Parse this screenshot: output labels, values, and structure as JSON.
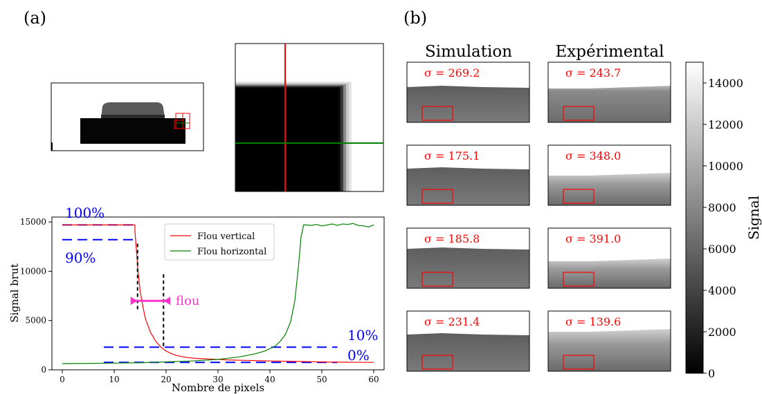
{
  "panel_labels": {
    "a": "(a)",
    "b": "(b)"
  },
  "column_headers": {
    "sim": "Simulation",
    "exp": "Expérimental"
  },
  "legend": {
    "vertical": "Flou vertical",
    "horizontal": "Flou horizontal"
  },
  "annotations": {
    "p100": "100%",
    "p90": "90%",
    "p10": "10%",
    "p0": "0%",
    "flou": "flou"
  },
  "sigma_prefix": "σ = ",
  "sigma_values": {
    "sim": [
      "269.2",
      "175.1",
      "185.8",
      "231.4"
    ],
    "exp": [
      "243.7",
      "348.0",
      "391.0",
      "139.6"
    ]
  },
  "colorbar": {
    "label": "Signal",
    "ticks": [
      "0",
      "2000",
      "4000",
      "6000",
      "8000",
      "10000",
      "12000",
      "14000"
    ],
    "range": [
      0,
      15000
    ]
  },
  "colors": {
    "vertical": "#ff0000",
    "horizontal": "#008000",
    "threshold": "#0000ff",
    "flou": "#ff33cc",
    "roi": "#ff0000"
  },
  "chart_data": {
    "type": "line",
    "xlabel": "Nombre de pixels",
    "ylabel": "Signal brut",
    "xlim": [
      -2,
      62
    ],
    "ylim": [
      0,
      15500
    ],
    "xticks": [
      0,
      10,
      20,
      30,
      40,
      50,
      60
    ],
    "yticks": [
      0,
      5000,
      10000,
      15000
    ],
    "legend_position": "top-right",
    "series": [
      {
        "name": "Flou vertical",
        "x": [
          14,
          14,
          14.3,
          14.6,
          15,
          15.5,
          16,
          17,
          18,
          19,
          20,
          21,
          22,
          24,
          26,
          28,
          30,
          32,
          35,
          38,
          40,
          42,
          44,
          46,
          48,
          50,
          52,
          55,
          58,
          60
        ],
        "y": [
          14700,
          14000,
          12000,
          10000,
          8000,
          6500,
          5200,
          3800,
          2900,
          2300,
          1900,
          1650,
          1450,
          1250,
          1150,
          1100,
          1050,
          1000,
          960,
          920,
          900,
          880,
          860,
          840,
          820,
          800,
          780,
          770,
          760,
          760
        ]
      },
      {
        "name": "Flou horizontal",
        "x": [
          0,
          5,
          10,
          15,
          20,
          25,
          30,
          34,
          37,
          39,
          41,
          42,
          43,
          44,
          44.8,
          45.5,
          46,
          46.5,
          47,
          48,
          49,
          50,
          51,
          52,
          53,
          54,
          55,
          56,
          57,
          58,
          59,
          60
        ],
        "y": [
          620,
          650,
          680,
          720,
          800,
          900,
          1050,
          1300,
          1600,
          1900,
          2400,
          2900,
          3600,
          4900,
          7000,
          10500,
          13500,
          14700,
          14700,
          14650,
          14750,
          14600,
          14700,
          14800,
          14650,
          14800,
          14750,
          14850,
          14650,
          14600,
          14500,
          14700
        ]
      },
      {
        "name": "",
        "x": [
          0,
          14
        ],
        "y": [
          14700,
          14700
        ]
      }
    ],
    "thresholds": {
      "p100": 14700,
      "p90": 13200,
      "p10": 2300,
      "p0": 750
    },
    "blur_markers": {
      "x1": 14.5,
      "x2": 19.5,
      "y": 7000
    }
  }
}
